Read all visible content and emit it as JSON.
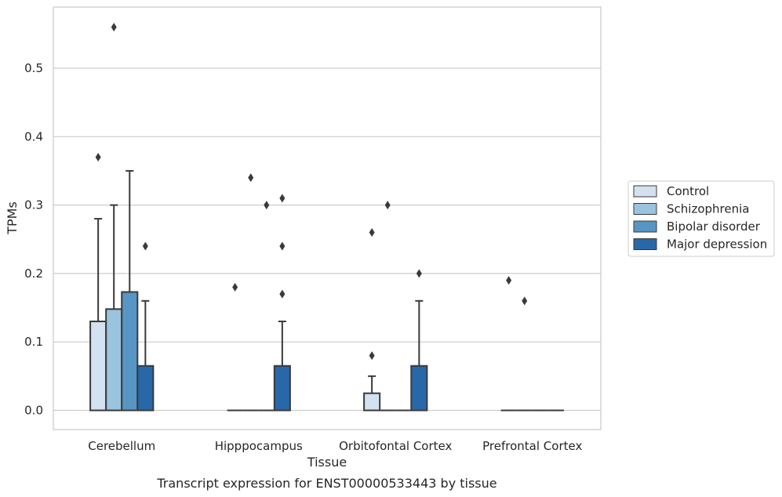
{
  "chart_data": {
    "type": "box",
    "caption": "Transcript expression for ENST00000533443 by tissue",
    "xlabel": "Tissue",
    "ylabel": "TPMs",
    "ylim": [
      -0.028,
      0.59
    ],
    "yticks": [
      "0.0",
      "0.1",
      "0.2",
      "0.3",
      "0.4",
      "0.5"
    ],
    "grid": "horizontal",
    "legend_position": "right",
    "categories": [
      "Cerebellum",
      "Hipppocampus",
      "Orbitofontal Cortex",
      "Prefrontal Cortex"
    ],
    "series": [
      {
        "name": "Control",
        "color": "#d3e2f0",
        "boxes": [
          {
            "q1": 0.0,
            "median": 0.0,
            "q3": 0.13,
            "whisker_low": 0.0,
            "whisker_high": 0.28,
            "outliers": [
              0.37
            ]
          },
          {
            "q1": 0.0,
            "median": 0.0,
            "q3": 0.0,
            "whisker_low": 0.0,
            "whisker_high": 0.0,
            "outliers": [
              0.18
            ]
          },
          {
            "q1": 0.0,
            "median": 0.0,
            "q3": 0.025,
            "whisker_low": 0.0,
            "whisker_high": 0.05,
            "outliers": [
              0.08,
              0.26
            ]
          },
          {
            "q1": 0.0,
            "median": 0.0,
            "q3": 0.0,
            "whisker_low": 0.0,
            "whisker_high": 0.0,
            "outliers": [
              0.19
            ]
          }
        ]
      },
      {
        "name": "Schizophrenia",
        "color": "#9ac4de",
        "boxes": [
          {
            "q1": 0.0,
            "median": 0.0,
            "q3": 0.148,
            "whisker_low": 0.0,
            "whisker_high": 0.3,
            "outliers": [
              0.56
            ]
          },
          {
            "q1": 0.0,
            "median": 0.0,
            "q3": 0.0,
            "whisker_low": 0.0,
            "whisker_high": 0.0,
            "outliers": [
              0.34
            ]
          },
          {
            "q1": 0.0,
            "median": 0.0,
            "q3": 0.0,
            "whisker_low": 0.0,
            "whisker_high": 0.0,
            "outliers": [
              0.3
            ]
          },
          {
            "q1": 0.0,
            "median": 0.0,
            "q3": 0.0,
            "whisker_low": 0.0,
            "whisker_high": 0.0,
            "outliers": [
              0.16
            ]
          }
        ]
      },
      {
        "name": "Bipolar disorder",
        "color": "#5796c4",
        "boxes": [
          {
            "q1": 0.0,
            "median": 0.0,
            "q3": 0.173,
            "whisker_low": 0.0,
            "whisker_high": 0.35,
            "outliers": []
          },
          {
            "q1": 0.0,
            "median": 0.0,
            "q3": 0.0,
            "whisker_low": 0.0,
            "whisker_high": 0.0,
            "outliers": [
              0.3
            ]
          },
          {
            "q1": 0.0,
            "median": 0.0,
            "q3": 0.0,
            "whisker_low": 0.0,
            "whisker_high": 0.0,
            "outliers": []
          },
          {
            "q1": 0.0,
            "median": 0.0,
            "q3": 0.0,
            "whisker_low": 0.0,
            "whisker_high": 0.0,
            "outliers": []
          }
        ]
      },
      {
        "name": "Major depression",
        "color": "#2868a9",
        "boxes": [
          {
            "q1": 0.0,
            "median": 0.0,
            "q3": 0.065,
            "whisker_low": 0.0,
            "whisker_high": 0.16,
            "outliers": [
              0.24
            ]
          },
          {
            "q1": 0.0,
            "median": 0.0,
            "q3": 0.065,
            "whisker_low": 0.0,
            "whisker_high": 0.13,
            "outliers": [
              0.17,
              0.24,
              0.31
            ]
          },
          {
            "q1": 0.0,
            "median": 0.0,
            "q3": 0.065,
            "whisker_low": 0.0,
            "whisker_high": 0.16,
            "outliers": [
              0.2
            ]
          },
          {
            "q1": 0.0,
            "median": 0.0,
            "q3": 0.0,
            "whisker_low": 0.0,
            "whisker_high": 0.0,
            "outliers": []
          }
        ]
      }
    ]
  }
}
